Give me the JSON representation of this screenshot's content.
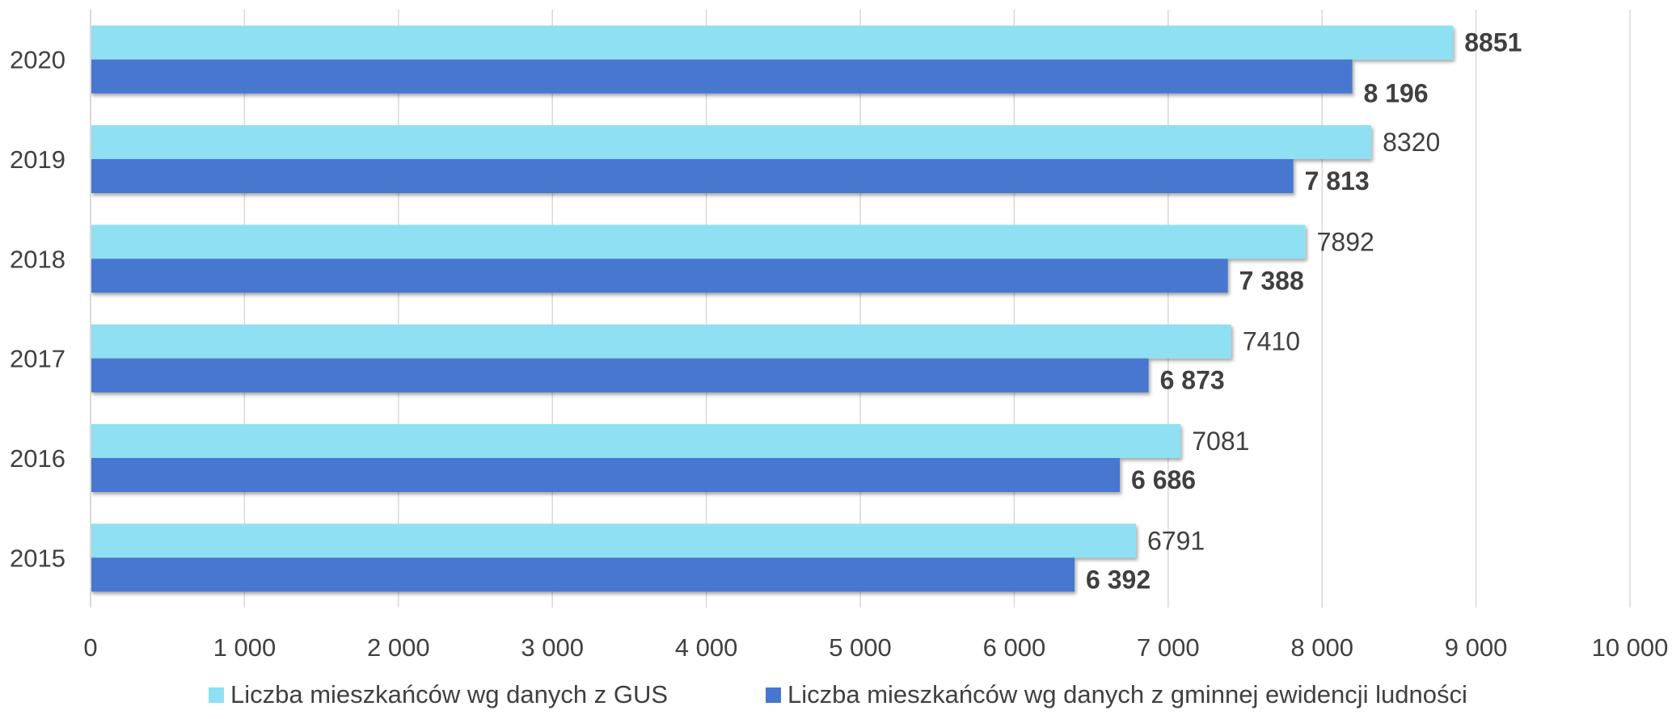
{
  "chart_data": {
    "type": "bar",
    "orientation": "horizontal",
    "categories": [
      "2020",
      "2019",
      "2018",
      "2017",
      "2016",
      "2015"
    ],
    "series": [
      {
        "name": "Liczba mieszkańców wg danych z GUS",
        "color": "#8FE0F2",
        "values": [
          8851,
          8320,
          7892,
          7410,
          7081,
          6791
        ],
        "labels": [
          "8851",
          "8320",
          "7892",
          "7410",
          "7081",
          "6791"
        ]
      },
      {
        "name": "Liczba mieszkańców wg danych z gminnej ewidencji ludności",
        "color": "#4677CF",
        "values": [
          8196,
          7813,
          7388,
          6873,
          6686,
          6392
        ],
        "labels": [
          "8 196",
          "7 813",
          "7 388",
          "6 873",
          "6 686",
          "6 392"
        ]
      }
    ],
    "x_ticks": [
      "0",
      "1 000",
      "2 000",
      "3 000",
      "4 000",
      "5 000",
      "6 000",
      "7 000",
      "8 000",
      "9 000",
      "10 000"
    ],
    "xlim": [
      0,
      10000
    ],
    "grid": "vertical",
    "legend_position": "bottom"
  }
}
